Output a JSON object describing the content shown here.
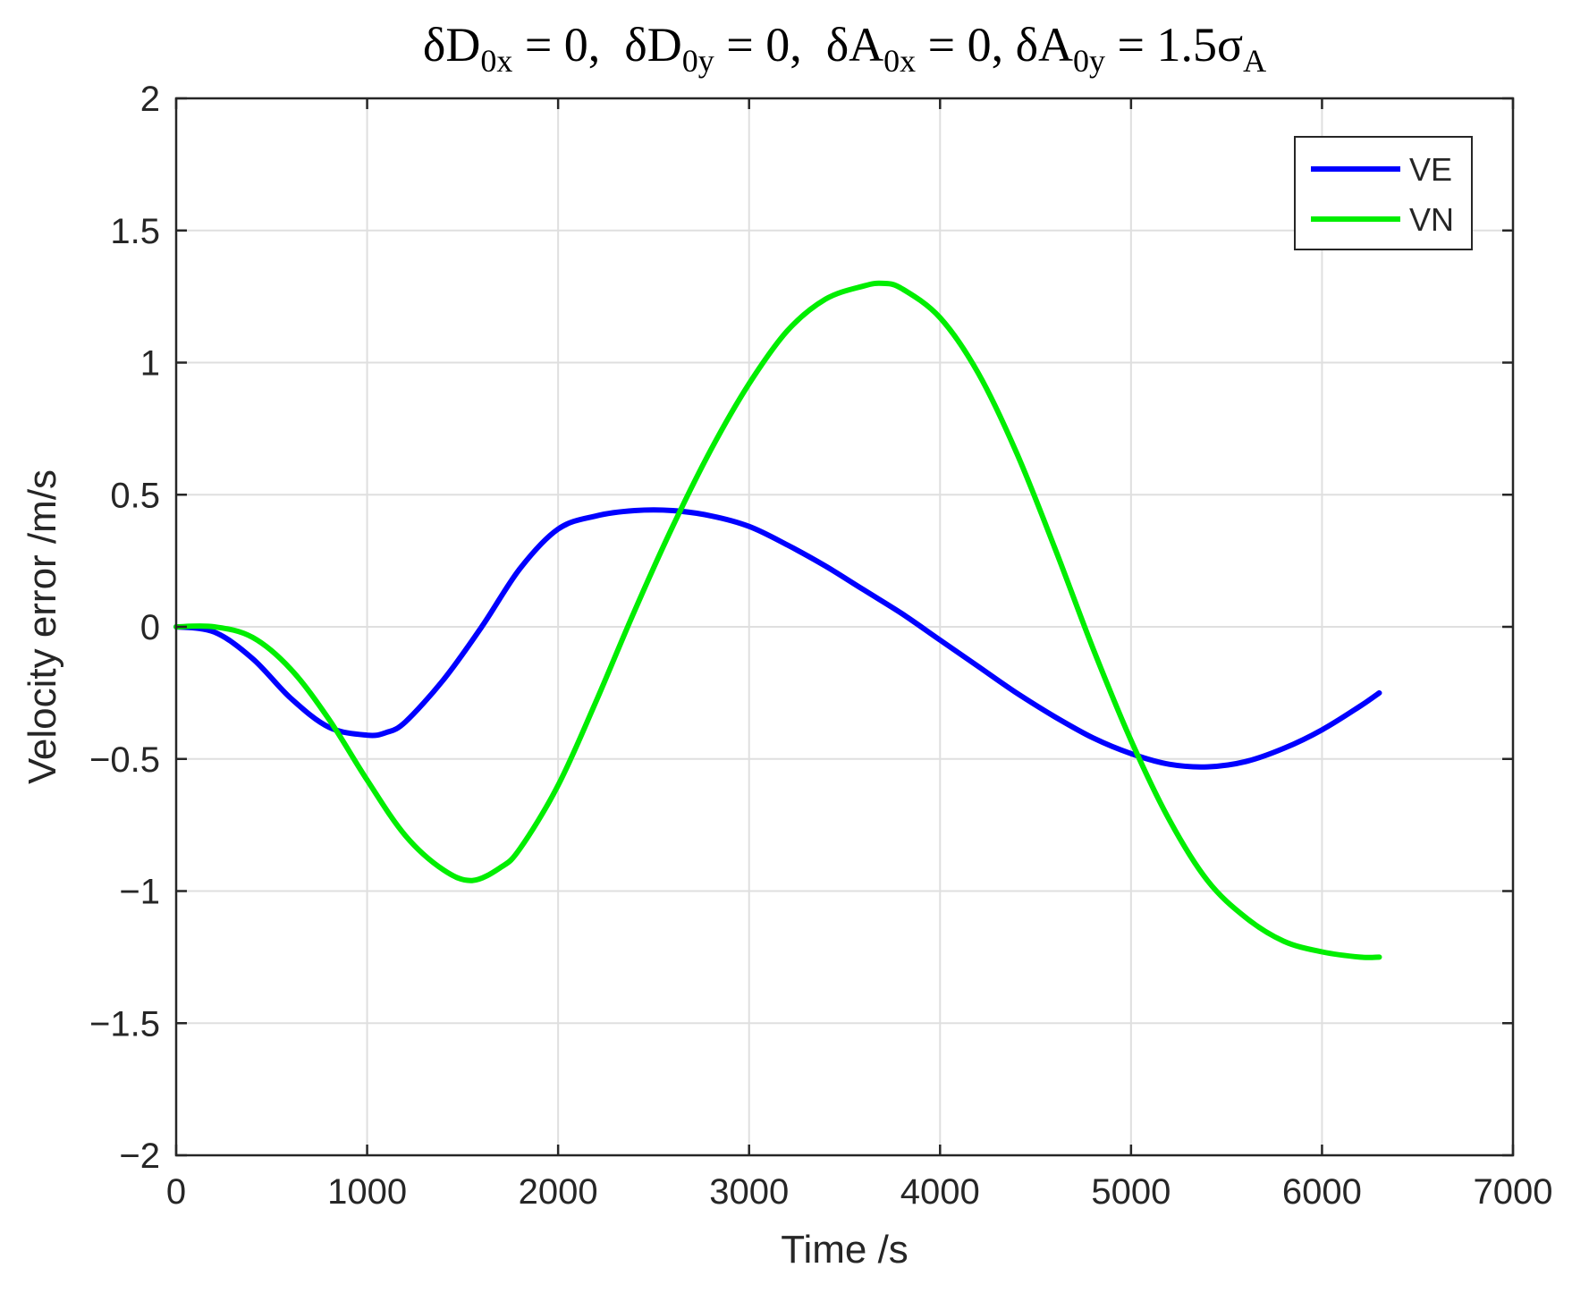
{
  "chart_data": {
    "type": "line",
    "title": {
      "parts": [
        {
          "t": "δD",
          "sub": false
        },
        {
          "t": "0x",
          "sub": true
        },
        {
          "t": " = 0,  δD",
          "sub": false
        },
        {
          "t": "0y",
          "sub": true
        },
        {
          "t": " = 0,  δA",
          "sub": false
        },
        {
          "t": "0x",
          "sub": true
        },
        {
          "t": " = 0, δA",
          "sub": false
        },
        {
          "t": "0y",
          "sub": true
        },
        {
          "t": " = 1.5σ",
          "sub": false
        },
        {
          "t": "A",
          "sub": true
        }
      ]
    },
    "xlabel": "Time /s",
    "ylabel": "Velocity error /m/s",
    "xlim": [
      0,
      7000
    ],
    "ylim": [
      -2,
      2
    ],
    "xticks": [
      0,
      1000,
      2000,
      3000,
      4000,
      5000,
      6000,
      7000
    ],
    "yticks": [
      2,
      1.5,
      1,
      0.5,
      0,
      -0.5,
      -1,
      -1.5,
      -2
    ],
    "xtick_labels": [
      "0",
      "1000",
      "2000",
      "3000",
      "4000",
      "5000",
      "6000",
      "7000"
    ],
    "ytick_labels": [
      "2",
      "1.5",
      "1",
      "0.5",
      "0",
      "−0.5",
      "−1",
      "−1.5",
      "−2"
    ],
    "grid": true,
    "legend_position": "top-right",
    "series": [
      {
        "name": "VE",
        "color": "#0000ff",
        "x": [
          0,
          200,
          400,
          600,
          800,
          1000,
          1100,
          1200,
          1400,
          1600,
          1800,
          2000,
          2200,
          2400,
          2600,
          2800,
          3000,
          3200,
          3400,
          3600,
          3800,
          4000,
          4200,
          4400,
          4600,
          4800,
          5000,
          5200,
          5400,
          5600,
          5800,
          6000,
          6200,
          6300
        ],
        "y": [
          0,
          -0.02,
          -0.12,
          -0.27,
          -0.38,
          -0.41,
          -0.4,
          -0.36,
          -0.2,
          0.0,
          0.22,
          0.37,
          0.42,
          0.44,
          0.44,
          0.42,
          0.38,
          0.31,
          0.23,
          0.14,
          0.05,
          -0.05,
          -0.15,
          -0.25,
          -0.34,
          -0.42,
          -0.48,
          -0.52,
          -0.53,
          -0.51,
          -0.46,
          -0.39,
          -0.3,
          -0.25
        ]
      },
      {
        "name": "VN",
        "color": "#00ee00",
        "x": [
          0,
          200,
          400,
          600,
          800,
          1000,
          1200,
          1400,
          1550,
          1700,
          1800,
          2000,
          2200,
          2400,
          2600,
          2800,
          3000,
          3200,
          3400,
          3600,
          3700,
          3800,
          4000,
          4200,
          4400,
          4600,
          4800,
          5000,
          5200,
          5400,
          5600,
          5800,
          6000,
          6200,
          6300
        ],
        "y": [
          0,
          0,
          -0.04,
          -0.16,
          -0.35,
          -0.58,
          -0.79,
          -0.92,
          -0.96,
          -0.91,
          -0.84,
          -0.6,
          -0.28,
          0.06,
          0.38,
          0.67,
          0.92,
          1.12,
          1.24,
          1.29,
          1.3,
          1.28,
          1.17,
          0.96,
          0.66,
          0.3,
          -0.08,
          -0.43,
          -0.73,
          -0.96,
          -1.1,
          -1.19,
          -1.23,
          -1.25,
          -1.25
        ]
      }
    ]
  }
}
